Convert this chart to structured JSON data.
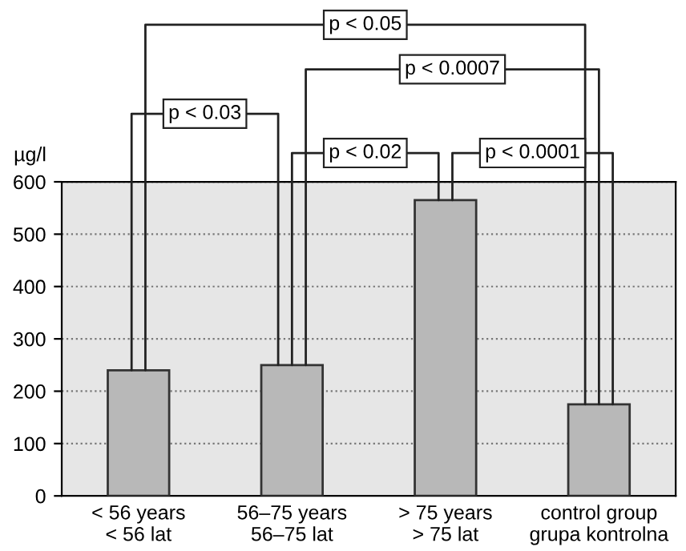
{
  "chart_data": {
    "type": "bar",
    "categories": [
      "< 56 years\n< 56 lat",
      "56–75 years\n56–75 lat",
      "> 75 years\n> 75 lat",
      "control group\ngrupa kontrolna"
    ],
    "values": [
      240,
      250,
      565,
      175
    ],
    "color": "#b8b8b8",
    "ylabel": "µg/l",
    "ylim": [
      0,
      600
    ],
    "yticks": [
      0,
      100,
      200,
      300,
      400,
      500,
      600
    ],
    "grid": "y",
    "annotations": [
      "p < 0.05",
      "p < 0.0007",
      "p < 0.03",
      {
        "text": "p < 0.02",
        "x": "> 75 years\n> 75 lat",
        "y": 565
      },
      {
        "text": "p < 0.0001",
        "x": "> 75 years\n> 75 lat",
        "y": 565
      }
    ]
  }
}
